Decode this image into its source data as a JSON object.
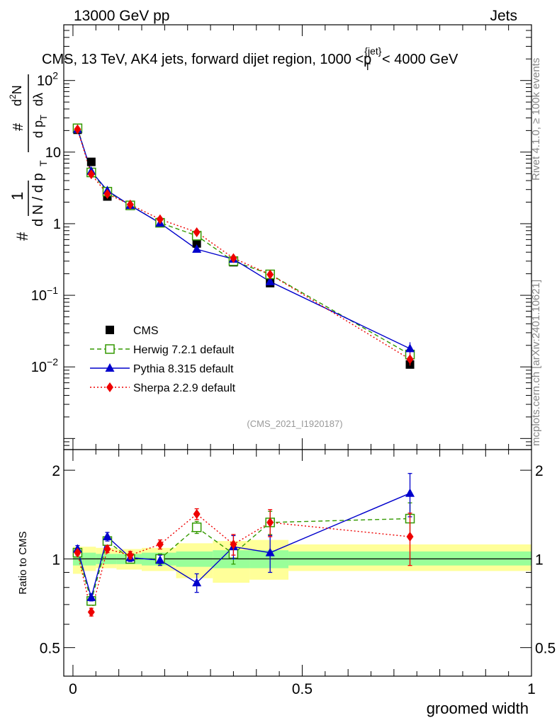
{
  "header": {
    "energy_label": "13000 GeV pp",
    "category_label": "Jets"
  },
  "side_labels": {
    "rivet": "Rivet 4.1.0, ≥ 100k events",
    "mcplots": "mcplots.cern.ch [arXiv:2401.10621]"
  },
  "chart_data": [
    {
      "type": "line",
      "panel": "main",
      "title": "CMS, 13 TeV, AK4 jets, forward dijet region, 1000 <p_T^{jet}< 4000 GeV",
      "title_parts": {
        "prefix": "CMS, 13 TeV, AK4 jets, forward dijet region, 1000 <",
        "p": "p",
        "sub": "T",
        "sup": "{jet}",
        "suffix": "< 4000 GeV"
      },
      "ylabel": "1/(dN/dp_T) dN^2/(dp_T dλ)",
      "ylabel_parts": {
        "one": "1",
        "denominator": "d N / d p",
        "sub_T": "T",
        "hash": "#",
        "numer_hash": "#",
        "numer_d": "d",
        "numer_sup": "2",
        "numer_N": "N",
        "denom2": "d p",
        "lambda": "dλ"
      },
      "yscale": "log",
      "ylim": [
        0.0007,
        600
      ],
      "xlim": [
        -0.02,
        1.0
      ],
      "y_ticks": [
        {
          "value": 0.01,
          "base": "10",
          "exp": "−2"
        },
        {
          "value": 0.1,
          "base": "10",
          "exp": "−1"
        },
        {
          "value": 1,
          "base": "1",
          "exp": ""
        },
        {
          "value": 10,
          "base": "10",
          "exp": ""
        },
        {
          "value": 100,
          "base": "10",
          "exp": "2"
        }
      ],
      "x": [
        0.01,
        0.04,
        0.075,
        0.125,
        0.19,
        0.27,
        0.35,
        0.43,
        0.735
      ],
      "series": [
        {
          "name": "CMS",
          "color": "#000000",
          "marker": "square",
          "line": "none",
          "values": [
            20.5,
            7.3,
            2.4,
            1.8,
            1.03,
            0.53,
            0.29,
            0.148,
            0.0108
          ]
        },
        {
          "name": "Herwig 7.2.1 default",
          "color": "#339900",
          "marker": "open-square",
          "line": "dashed",
          "values": [
            21.5,
            5.2,
            2.8,
            1.8,
            1.03,
            0.68,
            0.3,
            0.196,
            0.0149
          ]
        },
        {
          "name": "Pythia 8.315 default",
          "color": "#0000cc",
          "marker": "triangle",
          "line": "solid",
          "values": [
            20.8,
            5.4,
            2.9,
            1.8,
            1.02,
            0.44,
            0.32,
            0.155,
            0.018
          ]
        },
        {
          "name": "Sherpa 2.2.9 default",
          "color": "#ee0000",
          "marker": "diamond",
          "line": "dotted",
          "values": [
            20.8,
            4.9,
            2.6,
            1.85,
            1.15,
            0.76,
            0.33,
            0.195,
            0.0128
          ]
        }
      ],
      "legend_position": "middle-left",
      "annotation": "(CMS_2021_I1920187)"
    },
    {
      "type": "line",
      "panel": "ratio",
      "ylabel": "Ratio to CMS",
      "xlabel": "groomed width",
      "ylim": [
        0.4,
        2.35
      ],
      "xlim": [
        -0.02,
        1.0
      ],
      "y_ticks": [
        0.5,
        1,
        2
      ],
      "y_tick_labels": [
        "0.5",
        "1",
        "2"
      ],
      "x_ticks": [
        0,
        0.5,
        1
      ],
      "x_tick_labels": [
        "0",
        "0.5",
        "1"
      ],
      "x": [
        0.01,
        0.04,
        0.075,
        0.125,
        0.19,
        0.27,
        0.35,
        0.43,
        0.735
      ],
      "bands": {
        "bins": [
          [
            0.0,
            0.025
          ],
          [
            0.025,
            0.05
          ],
          [
            0.05,
            0.095
          ],
          [
            0.095,
            0.15
          ],
          [
            0.15,
            0.225
          ],
          [
            0.225,
            0.305
          ],
          [
            0.305,
            0.385
          ],
          [
            0.385,
            0.47
          ],
          [
            0.47,
            1.0
          ]
        ],
        "outer_color": "#ffff99",
        "inner_color": "#99ff99",
        "outer_lo": [
          0.89,
          0.91,
          0.93,
          0.92,
          0.91,
          0.86,
          0.83,
          0.85,
          0.91
        ],
        "outer_hi": [
          1.1,
          1.1,
          1.09,
          1.08,
          1.09,
          1.13,
          1.15,
          1.16,
          1.12
        ],
        "inner_lo": [
          0.95,
          0.95,
          0.96,
          0.96,
          0.95,
          0.94,
          0.93,
          0.93,
          0.95
        ],
        "inner_hi": [
          1.05,
          1.05,
          1.04,
          1.04,
          1.05,
          1.06,
          1.07,
          1.07,
          1.06
        ]
      },
      "series": [
        {
          "name": "Herwig 7.2.1 default",
          "color": "#339900",
          "marker": "open-square",
          "line": "dashed",
          "values": [
            1.05,
            0.72,
            1.15,
            1.0,
            1.0,
            1.28,
            1.04,
            1.33,
            1.37
          ],
          "errors": [
            0.02,
            0.02,
            0.03,
            0.03,
            0.04,
            0.06,
            0.08,
            0.12,
            0.18
          ]
        },
        {
          "name": "Pythia 8.315 default",
          "color": "#0000cc",
          "marker": "triangle",
          "line": "solid",
          "values": [
            1.08,
            0.74,
            1.19,
            1.01,
            0.99,
            0.83,
            1.1,
            1.05,
            1.67
          ],
          "errors": [
            0.03,
            0.02,
            0.04,
            0.03,
            0.04,
            0.06,
            0.1,
            0.15,
            0.28
          ]
        },
        {
          "name": "Sherpa 2.2.9 default",
          "color": "#ee0000",
          "marker": "diamond",
          "line": "dotted",
          "values": [
            1.05,
            0.66,
            1.08,
            1.03,
            1.12,
            1.42,
            1.12,
            1.33,
            1.19
          ],
          "errors": [
            0.02,
            0.02,
            0.03,
            0.03,
            0.04,
            0.06,
            0.09,
            0.14,
            0.24
          ]
        }
      ]
    }
  ]
}
